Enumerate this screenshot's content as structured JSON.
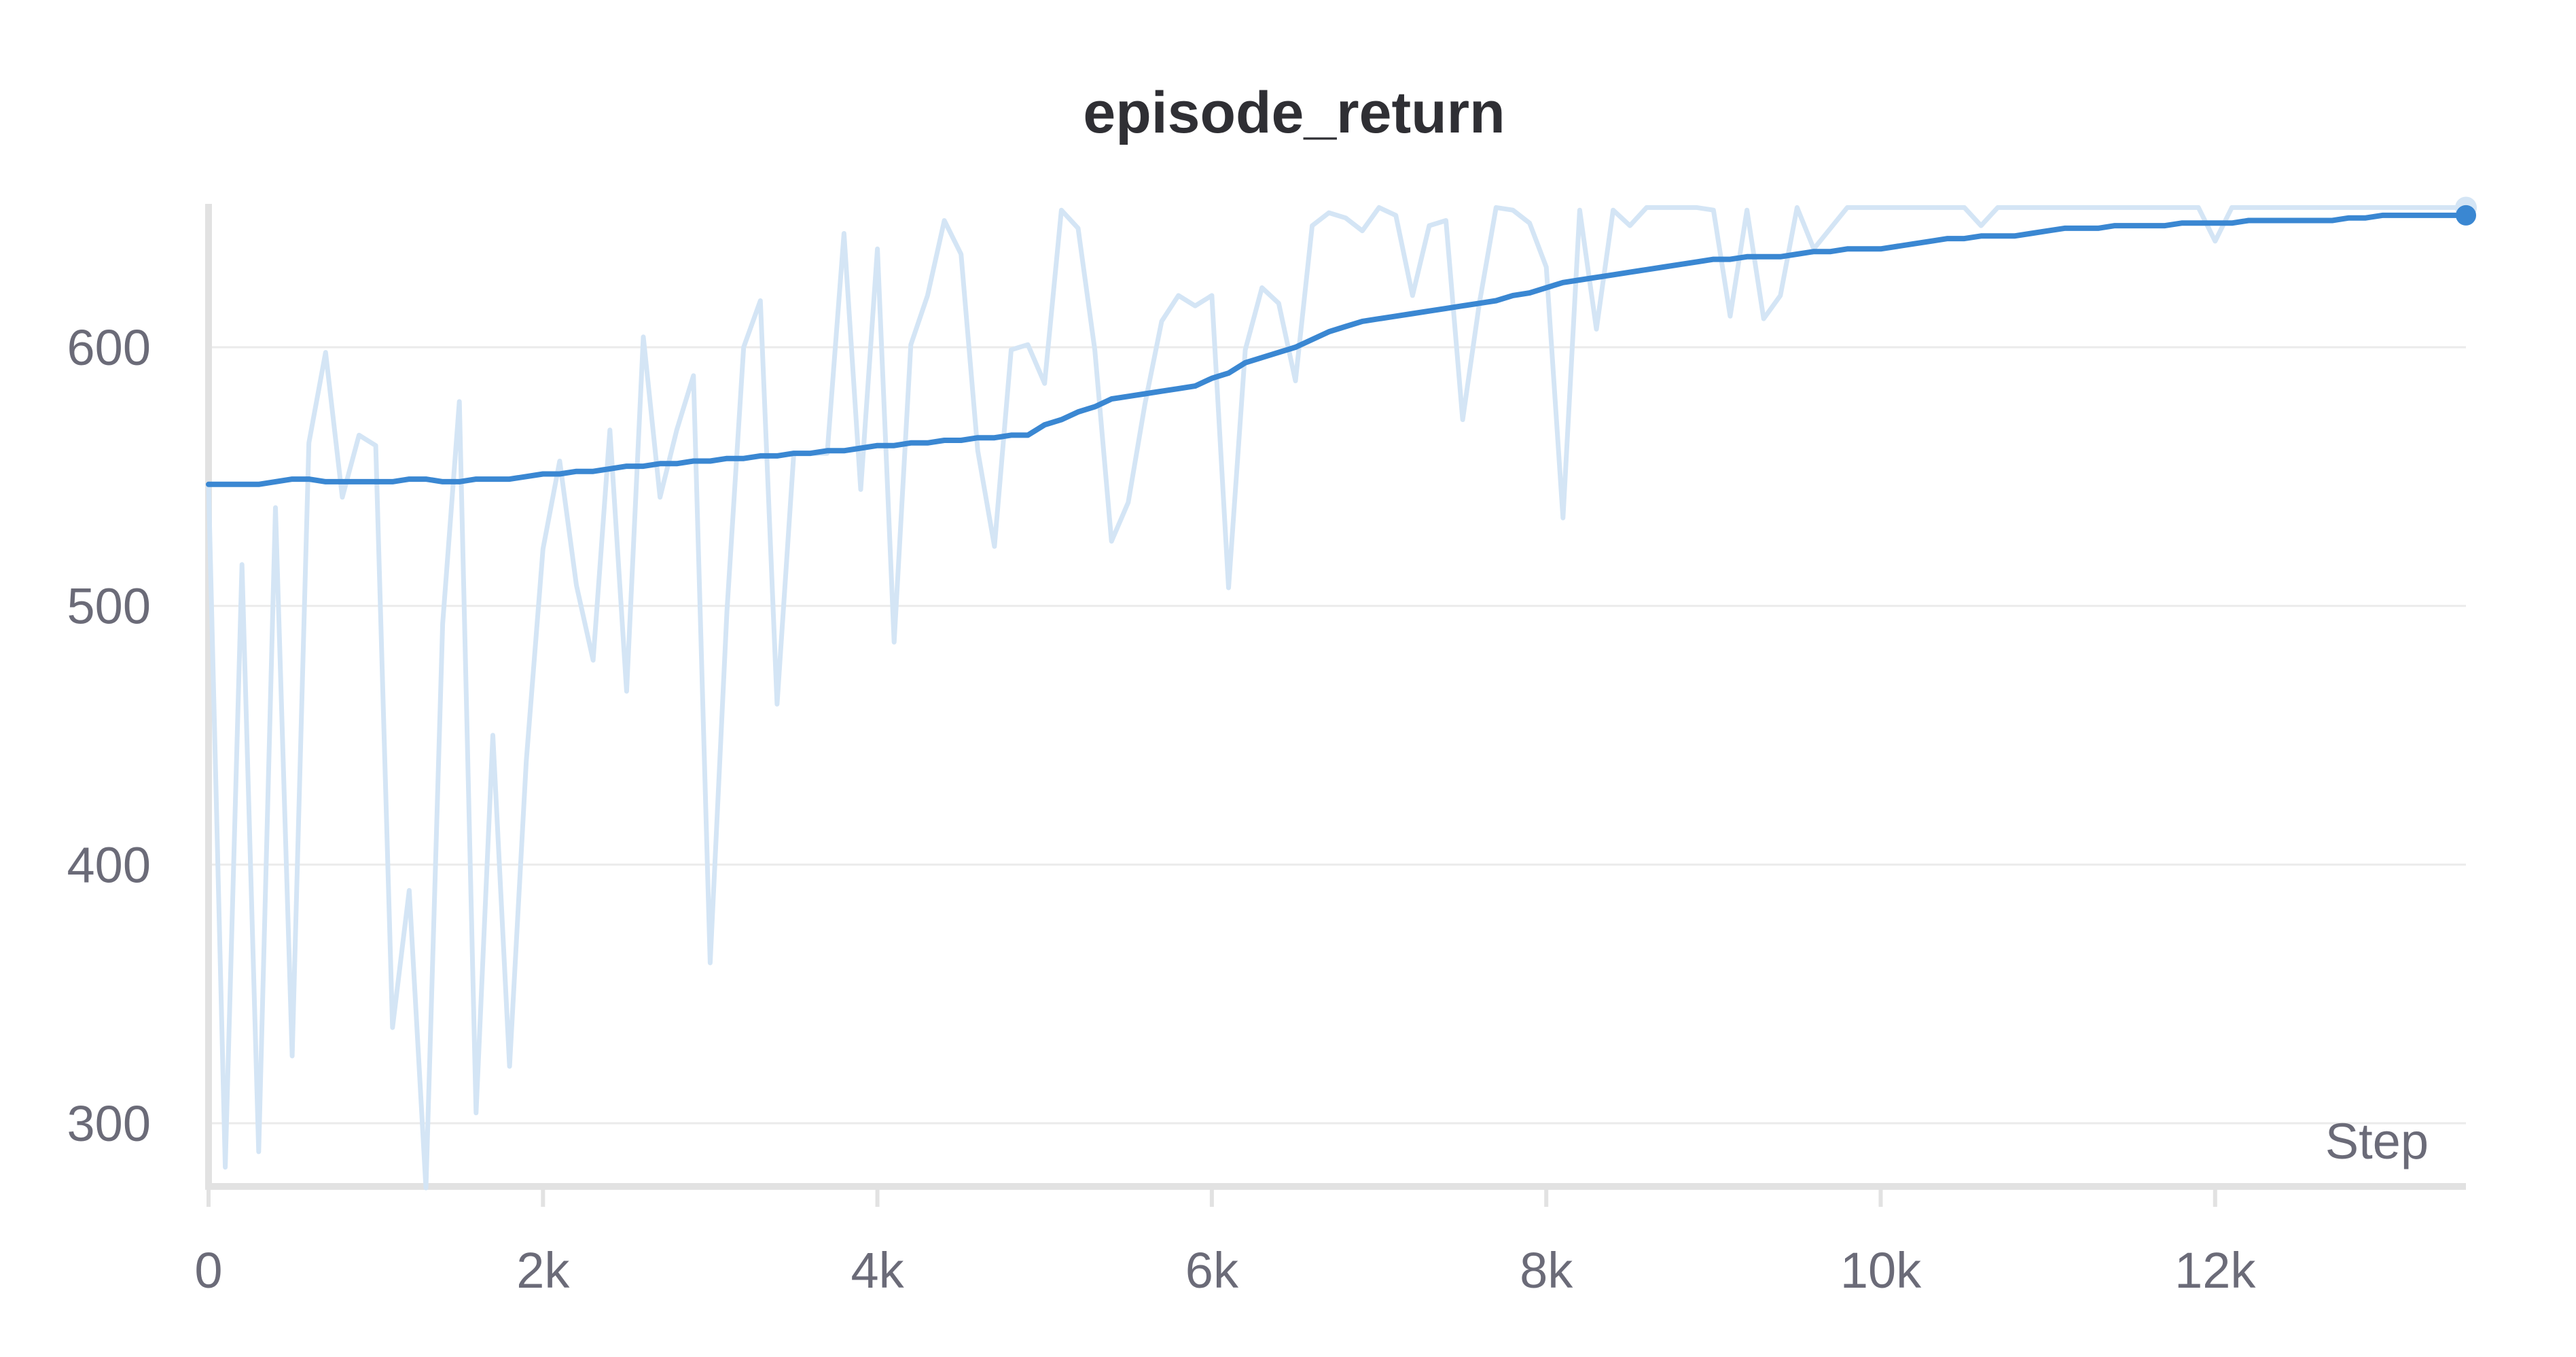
{
  "chart_data": {
    "type": "line",
    "title": "episode_return",
    "xlabel": "Step",
    "ylabel": "",
    "xlim": [
      0,
      13500
    ],
    "ylim": [
      275,
      655
    ],
    "x_ticks": [
      0,
      2000,
      4000,
      6000,
      8000,
      10000,
      12000
    ],
    "x_tick_labels": [
      "0",
      "2k",
      "4k",
      "6k",
      "8k",
      "10k",
      "12k"
    ],
    "y_ticks": [
      300,
      400,
      500,
      600
    ],
    "y_tick_labels": [
      "300",
      "400",
      "500",
      "600"
    ],
    "grid": true,
    "legend": "none",
    "series": [
      {
        "role": "raw",
        "color": "#d4e5f5",
        "points": [
          [
            0,
            547
          ],
          [
            100,
            283
          ],
          [
            200,
            516
          ],
          [
            300,
            289
          ],
          [
            400,
            538
          ],
          [
            500,
            326
          ],
          [
            600,
            563
          ],
          [
            700,
            598
          ],
          [
            800,
            542
          ],
          [
            900,
            566
          ],
          [
            1000,
            562
          ],
          [
            1100,
            337
          ],
          [
            1200,
            390
          ],
          [
            1300,
            275
          ],
          [
            1400,
            493
          ],
          [
            1500,
            579
          ],
          [
            1600,
            304
          ],
          [
            1700,
            450
          ],
          [
            1800,
            322
          ],
          [
            1900,
            440
          ],
          [
            2000,
            522
          ],
          [
            2100,
            556
          ],
          [
            2200,
            508
          ],
          [
            2300,
            479
          ],
          [
            2400,
            568
          ],
          [
            2500,
            467
          ],
          [
            2600,
            604
          ],
          [
            2700,
            542
          ],
          [
            2800,
            568
          ],
          [
            2900,
            589
          ],
          [
            3000,
            362
          ],
          [
            3100,
            498
          ],
          [
            3200,
            600
          ],
          [
            3300,
            618
          ],
          [
            3400,
            462
          ],
          [
            3500,
            559
          ],
          [
            3600,
            559
          ],
          [
            3700,
            559
          ],
          [
            3800,
            644
          ],
          [
            3900,
            545
          ],
          [
            4000,
            638
          ],
          [
            4100,
            486
          ],
          [
            4200,
            601
          ],
          [
            4300,
            620
          ],
          [
            4400,
            649
          ],
          [
            4500,
            636
          ],
          [
            4600,
            560
          ],
          [
            4700,
            523
          ],
          [
            4800,
            599
          ],
          [
            4900,
            601
          ],
          [
            5000,
            586
          ],
          [
            5100,
            653
          ],
          [
            5200,
            646
          ],
          [
            5300,
            599
          ],
          [
            5400,
            525
          ],
          [
            5500,
            540
          ],
          [
            5600,
            578
          ],
          [
            5700,
            610
          ],
          [
            5800,
            620
          ],
          [
            5900,
            616
          ],
          [
            6000,
            620
          ],
          [
            6100,
            507
          ],
          [
            6200,
            599
          ],
          [
            6300,
            623
          ],
          [
            6400,
            617
          ],
          [
            6500,
            587
          ],
          [
            6600,
            647
          ],
          [
            6700,
            652
          ],
          [
            6800,
            650
          ],
          [
            6900,
            645
          ],
          [
            7000,
            654
          ],
          [
            7100,
            651
          ],
          [
            7200,
            620
          ],
          [
            7300,
            647
          ],
          [
            7400,
            649
          ],
          [
            7500,
            572
          ],
          [
            7600,
            617
          ],
          [
            7700,
            654
          ],
          [
            7800,
            653
          ],
          [
            7900,
            648
          ],
          [
            8000,
            631
          ],
          [
            8100,
            534
          ],
          [
            8200,
            653
          ],
          [
            8300,
            607
          ],
          [
            8400,
            653
          ],
          [
            8500,
            647
          ],
          [
            8600,
            654
          ],
          [
            8700,
            654
          ],
          [
            8800,
            654
          ],
          [
            8900,
            654
          ],
          [
            9000,
            653
          ],
          [
            9100,
            612
          ],
          [
            9200,
            653
          ],
          [
            9300,
            611
          ],
          [
            9400,
            620
          ],
          [
            9500,
            654
          ],
          [
            9600,
            638
          ],
          [
            9700,
            646
          ],
          [
            9800,
            654
          ],
          [
            9900,
            654
          ],
          [
            10000,
            654
          ],
          [
            10100,
            654
          ],
          [
            10200,
            654
          ],
          [
            10300,
            654
          ],
          [
            10400,
            654
          ],
          [
            10500,
            654
          ],
          [
            10600,
            647
          ],
          [
            10700,
            654
          ],
          [
            10800,
            654
          ],
          [
            10900,
            654
          ],
          [
            11000,
            654
          ],
          [
            11100,
            654
          ],
          [
            11200,
            654
          ],
          [
            11300,
            654
          ],
          [
            11400,
            654
          ],
          [
            11500,
            654
          ],
          [
            11600,
            654
          ],
          [
            11700,
            654
          ],
          [
            11800,
            654
          ],
          [
            11900,
            654
          ],
          [
            12000,
            641
          ],
          [
            12100,
            654
          ],
          [
            12200,
            654
          ],
          [
            12300,
            654
          ],
          [
            12400,
            654
          ],
          [
            12500,
            654
          ],
          [
            12600,
            654
          ],
          [
            12700,
            654
          ],
          [
            12800,
            654
          ],
          [
            12900,
            654
          ],
          [
            13000,
            654
          ],
          [
            13100,
            654
          ],
          [
            13200,
            654
          ],
          [
            13300,
            654
          ],
          [
            13400,
            654
          ],
          [
            13500,
            654
          ]
        ]
      },
      {
        "role": "smoothed",
        "color": "#3a87d2",
        "points": [
          [
            0,
            547
          ],
          [
            200,
            547
          ],
          [
            300,
            547
          ],
          [
            400,
            548
          ],
          [
            500,
            549
          ],
          [
            600,
            549
          ],
          [
            700,
            548
          ],
          [
            800,
            548
          ],
          [
            900,
            548
          ],
          [
            1000,
            548
          ],
          [
            1100,
            548
          ],
          [
            1200,
            549
          ],
          [
            1300,
            549
          ],
          [
            1400,
            548
          ],
          [
            1500,
            548
          ],
          [
            1600,
            549
          ],
          [
            1700,
            549
          ],
          [
            1800,
            549
          ],
          [
            1900,
            550
          ],
          [
            2000,
            551
          ],
          [
            2100,
            551
          ],
          [
            2200,
            552
          ],
          [
            2300,
            552
          ],
          [
            2400,
            553
          ],
          [
            2500,
            554
          ],
          [
            2600,
            554
          ],
          [
            2700,
            555
          ],
          [
            2800,
            555
          ],
          [
            2900,
            556
          ],
          [
            3000,
            556
          ],
          [
            3100,
            557
          ],
          [
            3200,
            557
          ],
          [
            3300,
            558
          ],
          [
            3400,
            558
          ],
          [
            3500,
            559
          ],
          [
            3600,
            559
          ],
          [
            3700,
            560
          ],
          [
            3800,
            560
          ],
          [
            3900,
            561
          ],
          [
            4000,
            562
          ],
          [
            4100,
            562
          ],
          [
            4200,
            563
          ],
          [
            4300,
            563
          ],
          [
            4400,
            564
          ],
          [
            4500,
            564
          ],
          [
            4600,
            565
          ],
          [
            4700,
            565
          ],
          [
            4800,
            566
          ],
          [
            4900,
            566
          ],
          [
            5000,
            570
          ],
          [
            5100,
            572
          ],
          [
            5200,
            575
          ],
          [
            5300,
            577
          ],
          [
            5400,
            580
          ],
          [
            5500,
            581
          ],
          [
            5600,
            582
          ],
          [
            5700,
            583
          ],
          [
            5800,
            584
          ],
          [
            5900,
            585
          ],
          [
            6000,
            588
          ],
          [
            6100,
            590
          ],
          [
            6200,
            594
          ],
          [
            6300,
            596
          ],
          [
            6400,
            598
          ],
          [
            6500,
            600
          ],
          [
            6600,
            603
          ],
          [
            6700,
            606
          ],
          [
            6800,
            608
          ],
          [
            6900,
            610
          ],
          [
            7000,
            611
          ],
          [
            7100,
            612
          ],
          [
            7200,
            613
          ],
          [
            7300,
            614
          ],
          [
            7400,
            615
          ],
          [
            7500,
            616
          ],
          [
            7600,
            617
          ],
          [
            7700,
            618
          ],
          [
            7800,
            620
          ],
          [
            7900,
            621
          ],
          [
            8000,
            623
          ],
          [
            8100,
            625
          ],
          [
            8200,
            626
          ],
          [
            8300,
            627
          ],
          [
            8400,
            628
          ],
          [
            8500,
            629
          ],
          [
            8600,
            630
          ],
          [
            8700,
            631
          ],
          [
            8800,
            632
          ],
          [
            8900,
            633
          ],
          [
            9000,
            634
          ],
          [
            9100,
            634
          ],
          [
            9200,
            635
          ],
          [
            9300,
            635
          ],
          [
            9400,
            635
          ],
          [
            9500,
            636
          ],
          [
            9600,
            637
          ],
          [
            9700,
            637
          ],
          [
            9800,
            638
          ],
          [
            9900,
            638
          ],
          [
            10000,
            638
          ],
          [
            10100,
            639
          ],
          [
            10200,
            640
          ],
          [
            10300,
            641
          ],
          [
            10400,
            642
          ],
          [
            10500,
            642
          ],
          [
            10600,
            643
          ],
          [
            10700,
            643
          ],
          [
            10800,
            643
          ],
          [
            10900,
            644
          ],
          [
            11000,
            645
          ],
          [
            11100,
            646
          ],
          [
            11200,
            646
          ],
          [
            11300,
            646
          ],
          [
            11400,
            647
          ],
          [
            11500,
            647
          ],
          [
            11600,
            647
          ],
          [
            11700,
            647
          ],
          [
            11800,
            648
          ],
          [
            11900,
            648
          ],
          [
            12000,
            648
          ],
          [
            12100,
            648
          ],
          [
            12200,
            649
          ],
          [
            12300,
            649
          ],
          [
            12400,
            649
          ],
          [
            12500,
            649
          ],
          [
            12600,
            649
          ],
          [
            12700,
            649
          ],
          [
            12800,
            650
          ],
          [
            12900,
            650
          ],
          [
            13000,
            651
          ],
          [
            13100,
            651
          ],
          [
            13200,
            651
          ],
          [
            13300,
            651
          ],
          [
            13400,
            651
          ],
          [
            13500,
            651
          ]
        ]
      }
    ]
  }
}
